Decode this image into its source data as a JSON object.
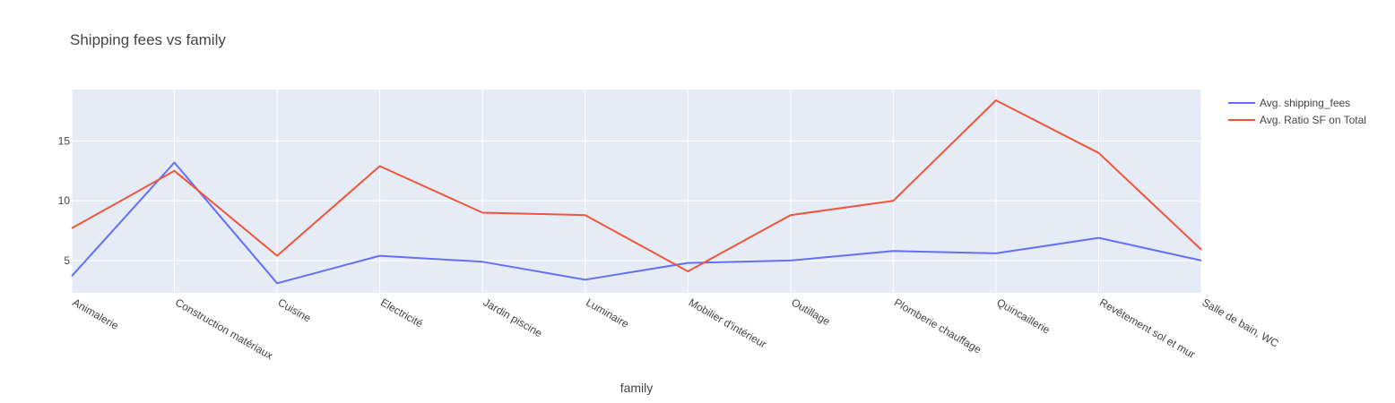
{
  "chart_data": {
    "type": "line",
    "title": "Shipping fees vs family",
    "xlabel": "family",
    "ylabel": "",
    "categories": [
      "Animalerie",
      "Construction matériaux",
      "Cuisine",
      "Electricité",
      "Jardin piscine",
      "Luminaire",
      "Mobilier d'intérieur",
      "Outillage",
      "Plomberie chauffage",
      "Quincaillerie",
      "Revêtement sol et mur",
      "Salle de bain, WC"
    ],
    "series": [
      {
        "name": "Avg. shipping_fees",
        "color": "#636efa",
        "values": [
          3.7,
          13.2,
          3.1,
          5.4,
          4.9,
          3.4,
          4.8,
          5.0,
          5.8,
          5.6,
          6.9,
          5.0
        ]
      },
      {
        "name": "Avg. Ratio SF on Total",
        "color": "#ef553b",
        "values": [
          7.7,
          12.5,
          5.4,
          12.9,
          9.0,
          8.8,
          4.1,
          8.8,
          10.0,
          18.4,
          14.0,
          5.9
        ]
      }
    ],
    "yticks": [
      5,
      10,
      15
    ],
    "ylim": [
      2.3,
      19.3
    ],
    "grid": true,
    "legend_position": "top-right",
    "plot_background": "#e5ecf6",
    "grid_color": "#ffffff"
  }
}
